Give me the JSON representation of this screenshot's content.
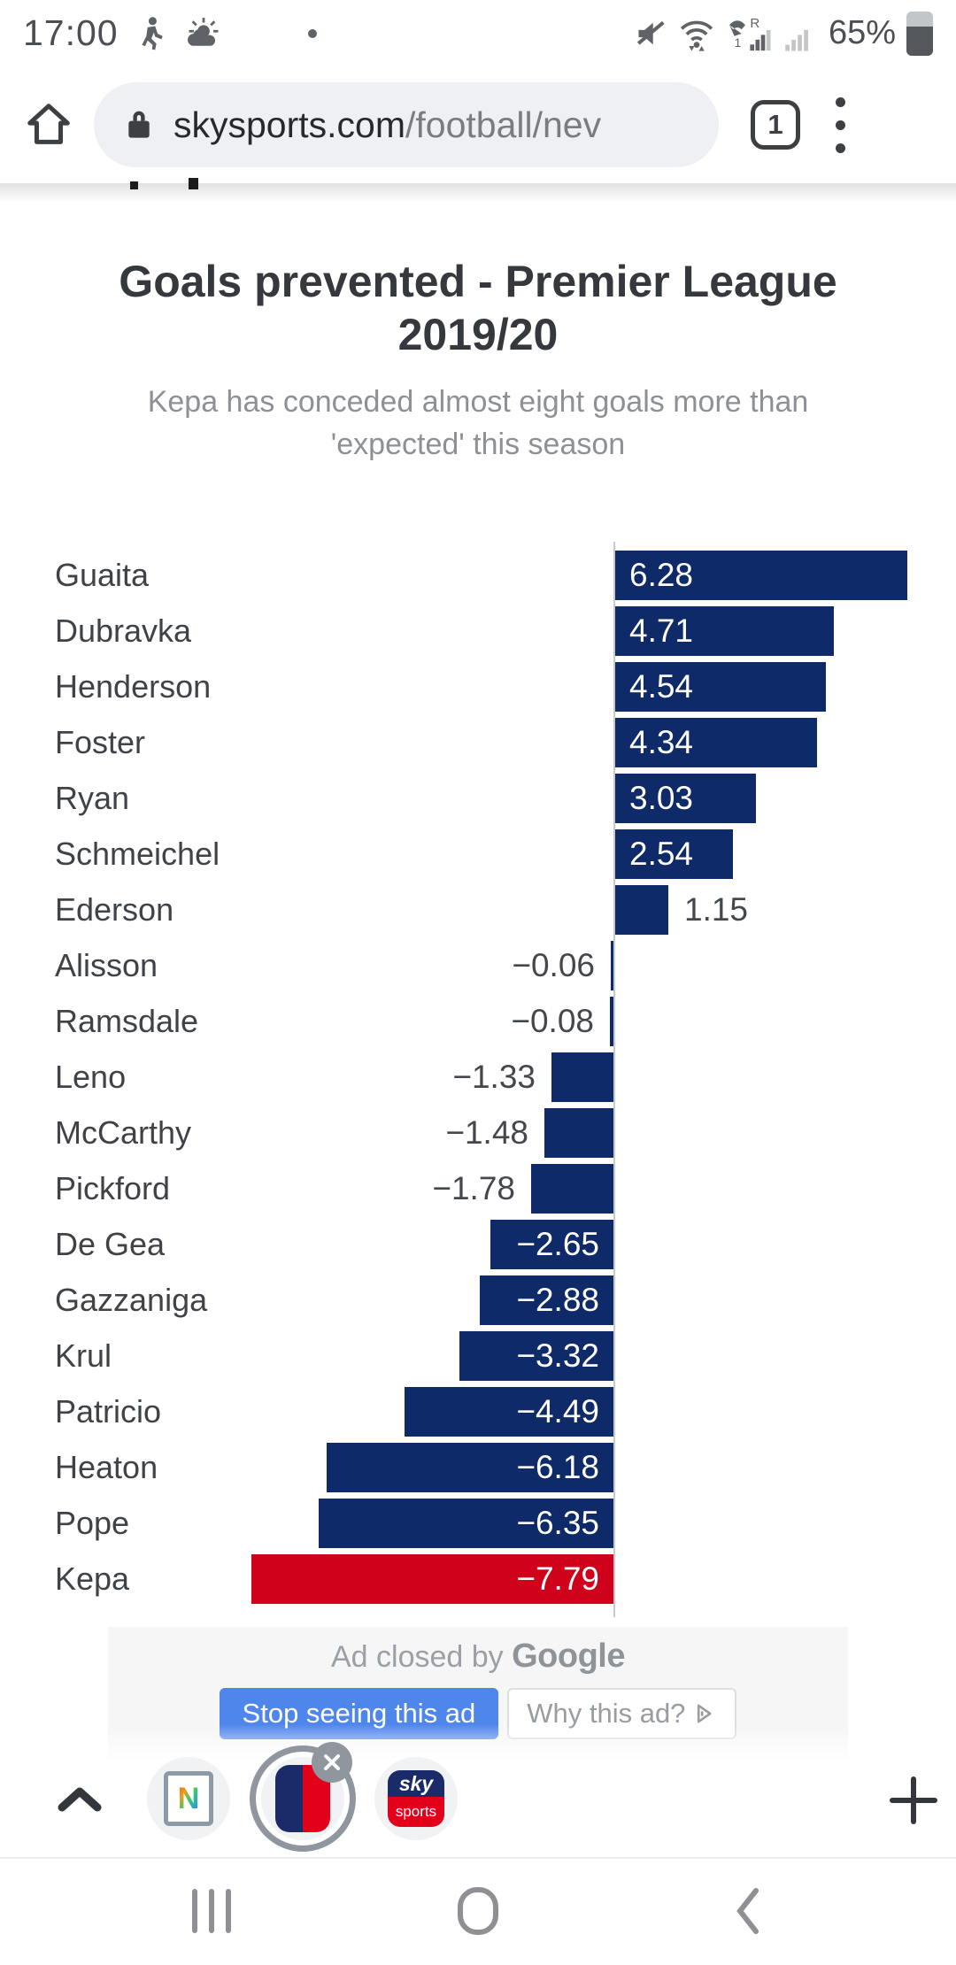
{
  "status_bar": {
    "time": "17:00",
    "battery": "65%",
    "roaming": "R",
    "sim": "1",
    "icons": [
      "walking-person-icon",
      "partly-cloudy-icon",
      "notification-dot",
      "mute-icon",
      "wifi-icon",
      "phone-signal-icon",
      "signal-bars-icon",
      "battery-icon"
    ]
  },
  "browser": {
    "url_domain": "skysports.com",
    "url_path": "/football/nev",
    "tab_count": "1"
  },
  "chart_data": {
    "type": "bar",
    "orientation": "horizontal",
    "title": "Goals prevented - Premier League 2019/20",
    "subtitle": "Kepa has conceded almost eight goals more than 'expected' this season",
    "categories": [
      "Guaita",
      "Dubravka",
      "Henderson",
      "Foster",
      "Ryan",
      "Schmeichel",
      "Ederson",
      "Alisson",
      "Ramsdale",
      "Leno",
      "McCarthy",
      "Pickford",
      "De Gea",
      "Gazzaniga",
      "Krul",
      "Patricio",
      "Heaton",
      "Pope",
      "Kepa"
    ],
    "values": [
      6.28,
      4.71,
      4.54,
      4.34,
      3.03,
      2.54,
      1.15,
      -0.06,
      -0.08,
      -1.33,
      -1.48,
      -1.78,
      -2.65,
      -2.88,
      -3.32,
      -4.49,
      -6.18,
      -6.35,
      -7.79
    ],
    "xlim": [
      -8,
      6.6
    ],
    "grid": false,
    "legend": "none",
    "bar_color": "#0f2a68",
    "highlight_category": "Kepa",
    "highlight_color": "#d0021b",
    "value_label_inside_color": "#ffffff",
    "value_label_outside_color": "#44484c",
    "category_label_color": "#3f4347"
  },
  "ad": {
    "closed_text": "Ad closed by",
    "brand": "Google",
    "stop_label": "Stop seeing this ad",
    "why_label": "Why this ad?"
  },
  "toolbar": {
    "n_letter": "N",
    "sky_top": "sky",
    "sky_bottom": "sports",
    "icons": [
      "collapse-chevron-icon",
      "news-site-bubble",
      "ad-bubble-selected",
      "sky-sports-bubble",
      "add-tab-icon"
    ]
  },
  "nav_bar": {
    "icons": [
      "recents-icon",
      "home-icon",
      "back-icon"
    ]
  }
}
